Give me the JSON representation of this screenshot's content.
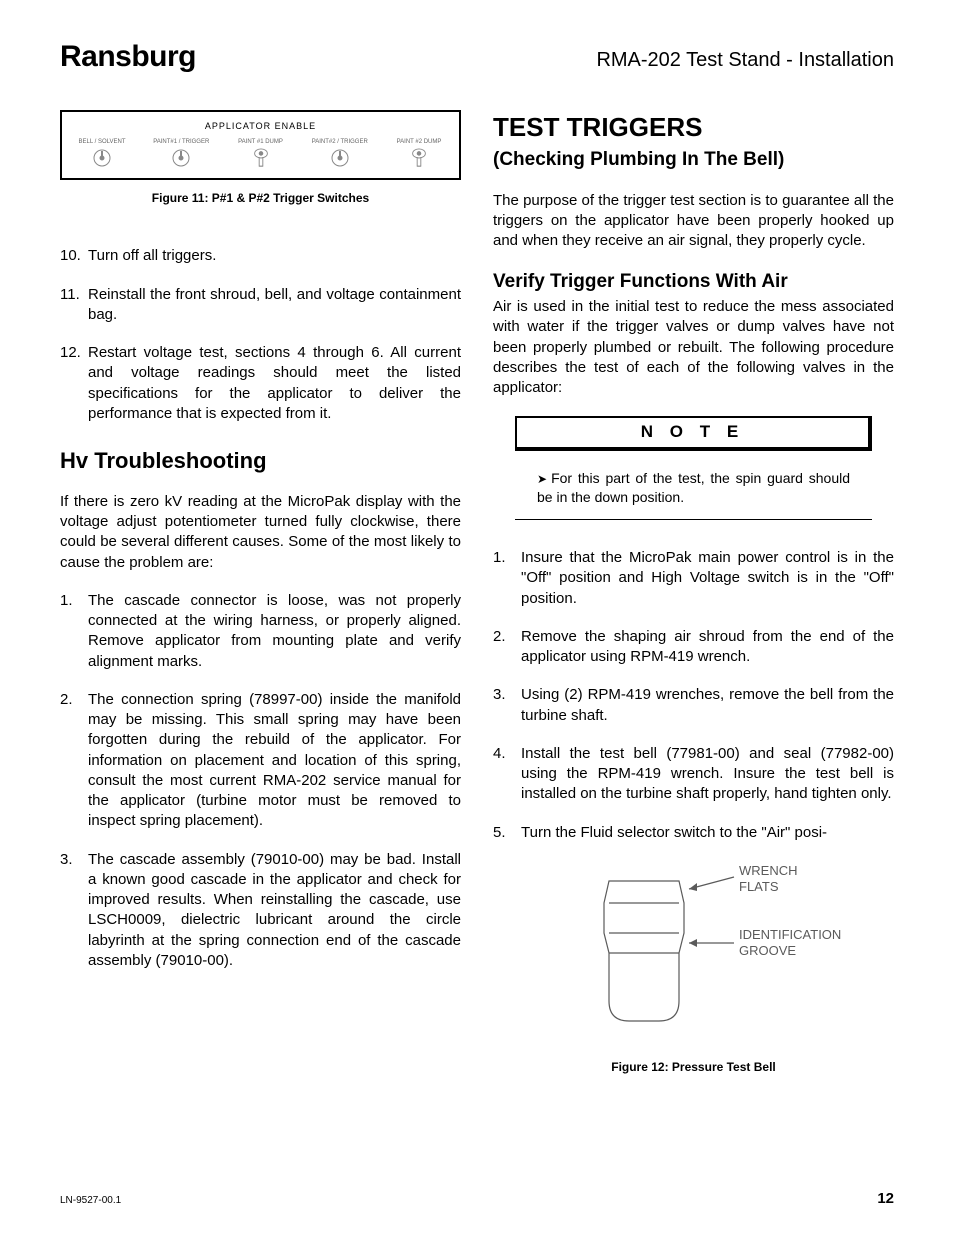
{
  "header": {
    "brand": "Ransburg",
    "doc_title": "RMA-202 Test Stand - Installation"
  },
  "left": {
    "fig11": {
      "panel_title": "APPLICATOR ENABLE",
      "switches": [
        {
          "label": "BELL / SOLVENT",
          "type": "round"
        },
        {
          "label": "PAINT#1 / TRIGGER",
          "type": "round"
        },
        {
          "label": "PAINT #1 DUMP",
          "type": "lever"
        },
        {
          "label": "PAINT#2 / TRIGGER",
          "type": "round"
        },
        {
          "label": "PAINT #2 DUMP",
          "type": "lever"
        }
      ],
      "caption": "Figure 11:  P#1 & P#2 Trigger Switches"
    },
    "steps_a": [
      {
        "n": "10.",
        "t": "Turn off all triggers."
      },
      {
        "n": "11.",
        "t": "Reinstall the front shroud, bell, and voltage containment bag."
      },
      {
        "n": "12.",
        "t": "Restart voltage test, sections 4 through 6.  All current and voltage readings should meet the listed specifications for the applicator to deliver the performance that is expected from it."
      }
    ],
    "hv_heading": "Hv Troubleshooting",
    "hv_intro": "If there is zero kV reading at the MicroPak display with the voltage adjust potentiometer turned fully clockwise, there could be several different causes.  Some of the most likely to cause the problem are:",
    "hv_items": [
      {
        "n": "1.",
        "t": "The cascade connector is loose, was not properly connected at the wiring harness, or properly aligned.  Remove applicator from mounting plate and verify alignment marks."
      },
      {
        "n": "2.",
        "t": "The connection spring (78997-00) inside the manifold may be missing.  This small spring may have been forgotten during the rebuild of the applicator.  For information on placement and location of this spring, consult the most current RMA-202 service manual for the applicator (turbine motor must be removed to inspect spring placement)."
      },
      {
        "n": "3.",
        "t": "The  cascade assembly (79010-00)  may be bad.  Install a known good cascade in the applicator and check for improved results.  When reinstalling the cascade, use LSCH0009, dielectric lubricant around the circle labyrinth at the spring connection end of the cascade assembly (79010-00)."
      }
    ]
  },
  "right": {
    "title": "TEST TRIGGERS",
    "subtitle": "(Checking Plumbing In The Bell)",
    "intro": "The purpose of the trigger test section is to guarantee all the triggers on the applicator have been properly hooked up and when they receive an air signal, they properly cycle.",
    "verify_heading": "Verify Trigger Functions With Air",
    "verify_para": "Air is used in the initial test to reduce the mess associated with water if the trigger valves or dump valves have not been properly plumbed or rebuilt.  The following procedure describes the test of each of the following valves in the applicator:",
    "note": {
      "label": "N O T E",
      "text": "For this part of the test, the spin guard should be in the down position."
    },
    "steps": [
      {
        "n": "1.",
        "t": "Insure that the MicroPak main power control is in the \"Off\" position and High Voltage switch is in the \"Off\" position."
      },
      {
        "n": "2.",
        "t": "Remove the shaping air shroud from the end of the applicator using RPM-419 wrench."
      },
      {
        "n": "3.",
        "t": "Using (2) RPM-419 wrenches, remove the bell from the turbine shaft."
      },
      {
        "n": "4.",
        "t": "Install the test bell (77981-00) and seal (77982-00) using the RPM-419 wrench.  Insure the test bell is installed on the turbine shaft properly, hand tighten only."
      },
      {
        "n": "5.",
        "t": "Turn the Fluid selector switch to the \"Air\" posi-"
      }
    ],
    "fig12": {
      "label_top": "WRENCH FLATS",
      "label_bottom": "IDENTIFICATION GROOVE",
      "caption": "Figure 12:  Pressure Test Bell",
      "line_color": "#5a5a5a",
      "text_color": "#5a5a5a"
    }
  },
  "footer": {
    "ln": "LN-9527-00.1",
    "page": "12"
  }
}
